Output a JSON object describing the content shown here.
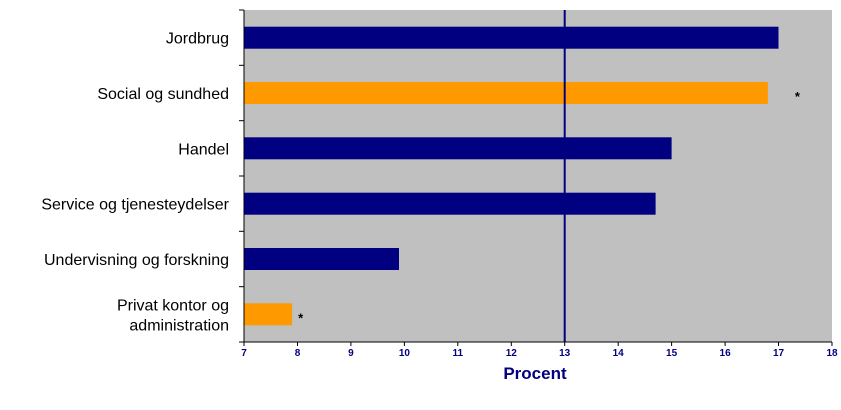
{
  "chart_data": {
    "type": "bar",
    "orientation": "horizontal",
    "categories": [
      [
        "Jordbrug"
      ],
      [
        "Social og sundhed"
      ],
      [
        "Handel"
      ],
      [
        "Service og tjenesteydelser"
      ],
      [
        "Undervisning og forskning"
      ],
      [
        "Privat kontor og",
        "administration"
      ]
    ],
    "values": [
      17.0,
      16.8,
      15.0,
      14.7,
      9.9,
      7.9
    ],
    "highlighted": [
      false,
      true,
      false,
      false,
      false,
      true
    ],
    "annotations": [
      "",
      "*",
      "",
      "",
      "",
      "*"
    ],
    "reference_line": 13,
    "xlabel": "Procent",
    "xlim": [
      7,
      18
    ],
    "xticks": [
      7,
      8,
      9,
      10,
      11,
      12,
      13,
      14,
      15,
      16,
      17,
      18
    ],
    "grid": false,
    "colors": {
      "bar": "#000080",
      "highlight": "#FF9900",
      "plot_background": "#C0C0C0",
      "reference_line": "#000080",
      "tick_text": "#000080"
    }
  }
}
